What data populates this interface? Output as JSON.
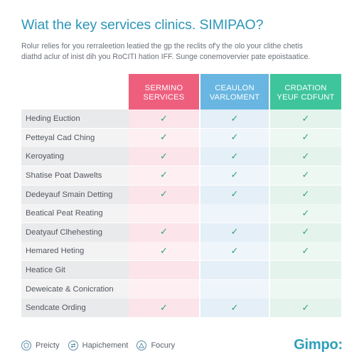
{
  "title": "Wiat the key services clinics. SIMIPAO?",
  "subtitle": {
    "line1": "Rolur relies for you rerraleetion leatied the gp the reclits of'y the olo your clithe chetis",
    "line2": "diathd aclur of inist dih you RoCITI hation IFF. Sunge conemovervier pate epoistaatice."
  },
  "columns": [
    {
      "line1": "SERMINO",
      "line2": "SERVICES",
      "color": "#ee5f7e"
    },
    {
      "line1": "CEAULON",
      "line2": "VARLOMENT",
      "color": "#68b6e1"
    },
    {
      "line1": "CRDATION",
      "line2": "YEUF CDFUNT",
      "color": "#3fc59b"
    }
  ],
  "rows": [
    {
      "label": "Heding Euction",
      "checks": [
        true,
        true,
        true
      ]
    },
    {
      "label": "Petteyal Cad Ching",
      "checks": [
        true,
        true,
        true
      ]
    },
    {
      "label": "Keroyating",
      "checks": [
        true,
        true,
        true
      ]
    },
    {
      "label": "Shatise Poat Dawelts",
      "checks": [
        true,
        true,
        true
      ]
    },
    {
      "label": "Dedeyauf Smain Detting",
      "checks": [
        true,
        true,
        true
      ]
    },
    {
      "label": "Beatical Peat Reating",
      "checks": [
        false,
        false,
        true
      ]
    },
    {
      "label": "Deatyauf Clhehesting",
      "checks": [
        true,
        true,
        true
      ]
    },
    {
      "label": "Hemared Heting",
      "checks": [
        true,
        true,
        true
      ]
    },
    {
      "label": "Heatice Git",
      "checks": [
        false,
        false,
        false
      ]
    },
    {
      "label": "Deweicate & Conicration",
      "checks": [
        false,
        false,
        false
      ]
    },
    {
      "label": "Sendcate Ording",
      "checks": [
        true,
        true,
        true
      ]
    }
  ],
  "check_glyph": "✓",
  "footer": {
    "items": [
      {
        "label": "Preicty",
        "icon": "shield-icon"
      },
      {
        "label": "Hapichement",
        "icon": "swap-icon"
      },
      {
        "label": "Focury",
        "icon": "warning-icon"
      }
    ],
    "brand": "Gimpo:"
  }
}
